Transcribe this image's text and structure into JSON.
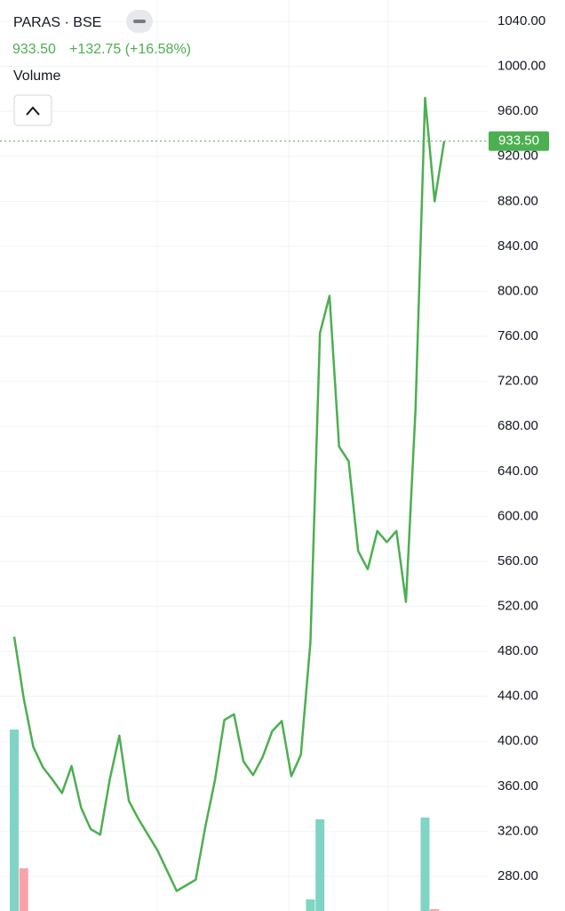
{
  "header": {
    "symbol": "PARAS · BSE",
    "price": "933.50",
    "change": "+132.75 (+16.58%)",
    "volume_label": "Volume"
  },
  "chart_data": {
    "type": "line",
    "color": "#4caf50",
    "values": [
      493,
      438,
      395,
      377,
      366,
      354,
      378,
      341,
      322,
      317,
      366,
      405,
      347,
      331,
      317,
      303,
      285,
      267,
      272,
      277,
      324,
      365,
      419,
      424,
      382,
      370,
      386,
      409,
      418,
      369,
      388,
      488,
      763,
      796,
      662,
      649,
      569,
      553,
      587,
      577,
      587,
      524,
      695,
      972,
      880,
      933.5
    ],
    "ylim": [
      1040,
      280
    ],
    "yticks": [
      {
        "value": 1040,
        "label": "1040.00"
      },
      {
        "value": 1000,
        "label": "1000.00"
      },
      {
        "value": 960,
        "label": "960.00"
      },
      {
        "value": 920,
        "label": "920.00"
      },
      {
        "value": 880,
        "label": "880.00"
      },
      {
        "value": 840,
        "label": "840.00"
      },
      {
        "value": 800,
        "label": "800.00"
      },
      {
        "value": 760,
        "label": "760.00"
      },
      {
        "value": 720,
        "label": "720.00"
      },
      {
        "value": 680,
        "label": "680.00"
      },
      {
        "value": 640,
        "label": "640.00"
      },
      {
        "value": 600,
        "label": "600.00"
      },
      {
        "value": 560,
        "label": "560.00"
      },
      {
        "value": 520,
        "label": "520.00"
      },
      {
        "value": 480,
        "label": "480.00"
      },
      {
        "value": 440,
        "label": "440.00"
      },
      {
        "value": 400,
        "label": "400.00"
      },
      {
        "value": 360,
        "label": "360.00"
      },
      {
        "value": 320,
        "label": "320.00"
      },
      {
        "value": 280,
        "label": "280.00"
      }
    ],
    "grid": true,
    "price_line": {
      "value": 933.5,
      "label": "933.50",
      "color": "#4caf50"
    },
    "volume": {
      "values": [
        204,
        48,
        null,
        null,
        null,
        null,
        null,
        null,
        null,
        null,
        null,
        null,
        null,
        null,
        null,
        null,
        null,
        null,
        null,
        null,
        null,
        null,
        null,
        null,
        null,
        null,
        null,
        null,
        null,
        null,
        null,
        13,
        103,
        null,
        null,
        null,
        null,
        null,
        null,
        null,
        null,
        null,
        null,
        105,
        2,
        null
      ],
      "up_color": "#80d4c4",
      "down_color": "#f8a3aa",
      "directions": [
        "up",
        "down",
        null,
        null,
        null,
        null,
        null,
        null,
        null,
        null,
        null,
        null,
        null,
        null,
        null,
        null,
        null,
        null,
        null,
        null,
        null,
        null,
        null,
        null,
        null,
        null,
        null,
        null,
        null,
        null,
        null,
        "up",
        "up",
        null,
        null,
        null,
        null,
        null,
        null,
        null,
        null,
        null,
        null,
        "up",
        "down",
        null
      ]
    }
  }
}
